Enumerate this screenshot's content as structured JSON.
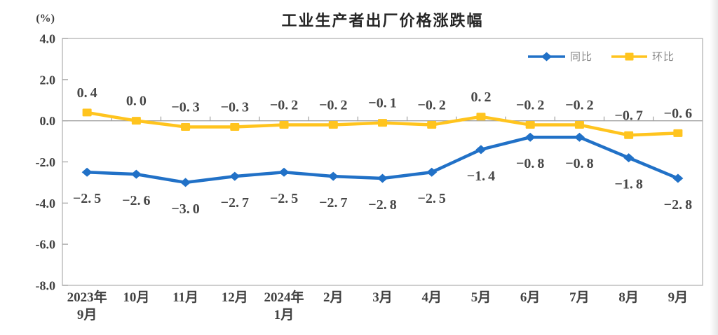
{
  "chart_data": {
    "type": "line",
    "title": "工业生产者出厂价格涨跌幅",
    "unit": "(%)",
    "ylim": [
      -8.0,
      4.0
    ],
    "y_tick_step": 2.0,
    "y_ticks": [
      4.0,
      2.0,
      0.0,
      -2.0,
      -4.0,
      -6.0,
      -8.0
    ],
    "grid": "zero-line-only",
    "legend_position": "top-right-inside",
    "categories": [
      "2023年\n9月",
      "10月",
      "11月",
      "12月",
      "2024年\n1月",
      "2月",
      "3月",
      "4月",
      "5月",
      "6月",
      "7月",
      "8月",
      "9月"
    ],
    "series": [
      {
        "id": "yoy",
        "name": "同比",
        "color": "#2171C7",
        "marker": "diamond",
        "label_position": "below",
        "values": [
          -2.5,
          -2.6,
          -3.0,
          -2.7,
          -2.5,
          -2.7,
          -2.8,
          -2.5,
          -1.4,
          -0.8,
          -0.8,
          -1.8,
          -2.8
        ]
      },
      {
        "id": "mom",
        "name": "环比",
        "color": "#FFC41E",
        "marker": "square",
        "label_position": "above",
        "values": [
          0.4,
          0.0,
          -0.3,
          -0.3,
          -0.2,
          -0.2,
          -0.1,
          -0.2,
          0.2,
          -0.2,
          -0.2,
          -0.7,
          -0.6
        ]
      }
    ]
  }
}
